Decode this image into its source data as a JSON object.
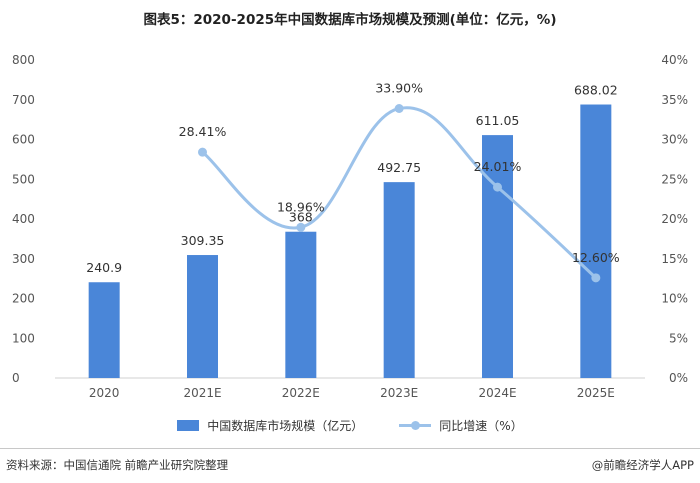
{
  "title": "图表5：2020-2025年中国数据库市场规模及预测(单位：亿元，%)",
  "footer": {
    "source": "资料来源：中国信通院 前瞻产业研究院整理",
    "brand": "@前瞻经济学人APP"
  },
  "colors": {
    "bar": "#4a86d8",
    "line": "#9cc2ea",
    "axis_text": "#555555",
    "label_text": "#333333"
  },
  "chart_data": {
    "type": "bar",
    "categories": [
      "2020",
      "2021E",
      "2022E",
      "2023E",
      "2024E",
      "2025E"
    ],
    "series": [
      {
        "name": "中国数据库市场规模（亿元）",
        "type": "bar",
        "axis": "left",
        "values": [
          240.9,
          309.35,
          368,
          492.75,
          611.05,
          688.02
        ],
        "labels": [
          "240.9",
          "309.35",
          "368",
          "492.75",
          "611.05",
          "688.02"
        ]
      },
      {
        "name": "同比增速（%）",
        "type": "line",
        "axis": "right",
        "values": [
          null,
          28.41,
          18.96,
          33.9,
          24.01,
          12.6
        ],
        "labels": [
          "",
          "28.41%",
          "18.96%",
          "33.90%",
          "24.01%",
          "12.60%"
        ]
      }
    ],
    "y_left": {
      "min": 0,
      "max": 800,
      "ticks": [
        "0",
        "100",
        "200",
        "300",
        "400",
        "500",
        "600",
        "700",
        "800"
      ]
    },
    "y_right": {
      "min": 0,
      "max": 40,
      "ticks": [
        "0%",
        "5%",
        "10%",
        "15%",
        "20%",
        "25%",
        "30%",
        "35%",
        "40%"
      ]
    },
    "grid": false,
    "legend_position": "bottom"
  }
}
